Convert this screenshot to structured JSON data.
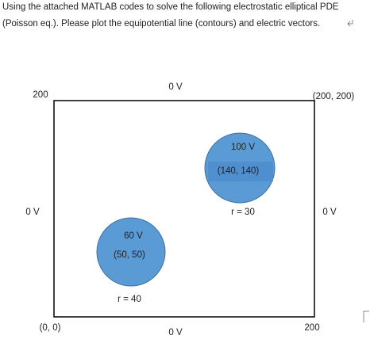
{
  "header": {
    "lines": [
      "Using the attached MATLAB codes to solve the following electrostatic elliptical PDE",
      "(Poisson eq.). Please plot the equipotential line (contours) and electric vectors."
    ]
  },
  "diagram": {
    "corner_labels": {
      "top_left": "200",
      "top_right": "(200, 200)",
      "bottom_left": "(0, 0)",
      "bottom_right": "200"
    },
    "boundary_labels": {
      "top": "0 V",
      "left": "0 V",
      "right": "0 V",
      "bottom": "0 V"
    },
    "circles": [
      {
        "voltage": "100 V",
        "center": "(140, 140)",
        "radius": "r = 30"
      },
      {
        "voltage": "60 V",
        "center": "(50, 50)",
        "radius": "r = 40"
      }
    ]
  }
}
